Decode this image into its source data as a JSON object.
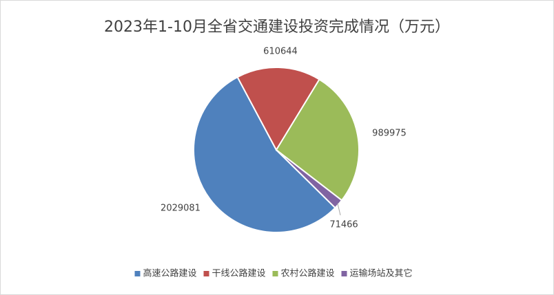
{
  "chart_data": {
    "type": "pie",
    "title": "2023年1-10月全省交通建设投资完成情况（万元）",
    "categories": [
      "高速公路建设",
      "干线公路建设",
      "农村公路建设",
      "运输场站及其它"
    ],
    "values": [
      2029081,
      610644,
      989975,
      71466
    ],
    "colors": [
      "#4f81bd",
      "#c0504d",
      "#9bbb59",
      "#8064a2"
    ],
    "legend": "bottom"
  }
}
